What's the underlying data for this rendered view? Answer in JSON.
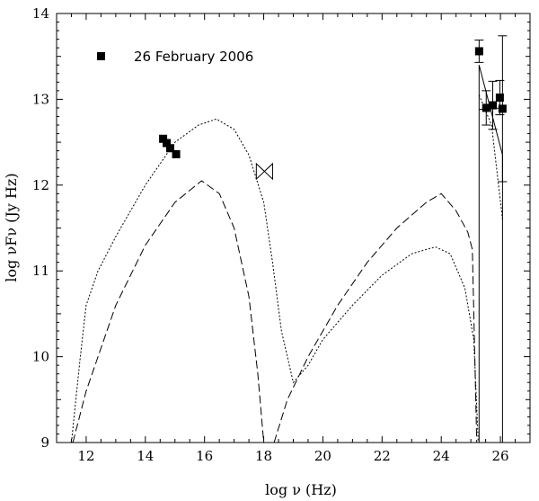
{
  "chart_data": {
    "type": "scatter",
    "title": "",
    "xlabel": "log ν (Hz)",
    "ylabel": "log νFν (Jy Hz)",
    "xlim": [
      11,
      27
    ],
    "ylim": [
      9,
      14
    ],
    "xticks": [
      12,
      14,
      16,
      18,
      20,
      22,
      24,
      26
    ],
    "yticks": [
      9,
      10,
      11,
      12,
      13,
      14
    ],
    "grid": false,
    "legend_position": "top-left",
    "series": [
      {
        "name": "26 February 2006",
        "kind": "points",
        "marker": "square",
        "points": [
          {
            "x": 14.6,
            "y": 12.54
          },
          {
            "x": 14.72,
            "y": 12.49
          },
          {
            "x": 14.84,
            "y": 12.43
          },
          {
            "x": 15.04,
            "y": 12.36
          },
          {
            "x": 25.28,
            "y": 13.56,
            "yerr": 0.13
          },
          {
            "x": 25.52,
            "y": 12.9,
            "yerr": 0.2
          },
          {
            "x": 25.74,
            "y": 12.93,
            "yerr": 0.28
          },
          {
            "x": 25.98,
            "y": 13.02,
            "yerr": 0.2
          },
          {
            "x": 26.07,
            "y": 12.89,
            "yerr": 0.85
          }
        ]
      },
      {
        "kind": "bowtie",
        "x_range": [
          17.75,
          18.3
        ],
        "y_center": 12.16,
        "half_width_ends": 0.09
      },
      {
        "kind": "line",
        "style": "dotted",
        "points": [
          [
            11.5,
            9.0
          ],
          [
            11.8,
            10.0
          ],
          [
            12.0,
            10.6
          ],
          [
            12.4,
            11.0
          ],
          [
            13.0,
            11.4
          ],
          [
            14.0,
            12.0
          ],
          [
            15.0,
            12.5
          ],
          [
            15.8,
            12.7
          ],
          [
            16.4,
            12.77
          ],
          [
            17.0,
            12.65
          ],
          [
            17.5,
            12.35
          ],
          [
            18.0,
            11.8
          ],
          [
            18.3,
            11.1
          ],
          [
            18.6,
            10.3
          ],
          [
            19.0,
            9.7
          ],
          [
            19.5,
            9.9
          ],
          [
            20.0,
            10.2
          ],
          [
            21.0,
            10.6
          ],
          [
            22.0,
            10.95
          ],
          [
            23.0,
            11.2
          ],
          [
            23.8,
            11.28
          ],
          [
            24.3,
            11.2
          ],
          [
            24.8,
            10.8
          ],
          [
            25.1,
            10.2
          ],
          [
            25.25,
            9.0
          ]
        ]
      },
      {
        "kind": "line",
        "style": "dashed",
        "points": [
          [
            11.55,
            9.0
          ],
          [
            12.0,
            9.6
          ],
          [
            13.0,
            10.6
          ],
          [
            14.0,
            11.3
          ],
          [
            15.0,
            11.8
          ],
          [
            15.9,
            12.05
          ],
          [
            16.5,
            11.9
          ],
          [
            17.0,
            11.5
          ],
          [
            17.5,
            10.7
          ],
          [
            17.8,
            9.8
          ],
          [
            18.0,
            9.0
          ]
        ]
      },
      {
        "kind": "line",
        "style": "dashed",
        "points": [
          [
            18.35,
            9.0
          ],
          [
            18.8,
            9.5
          ],
          [
            19.5,
            10.0
          ],
          [
            20.5,
            10.6
          ],
          [
            21.5,
            11.1
          ],
          [
            22.5,
            11.5
          ],
          [
            23.5,
            11.8
          ],
          [
            24.0,
            11.9
          ],
          [
            24.5,
            11.7
          ],
          [
            24.9,
            11.45
          ],
          [
            25.05,
            11.25
          ],
          [
            25.2,
            9.0
          ]
        ]
      },
      {
        "kind": "line",
        "style": "solid",
        "points": [
          [
            25.28,
            9.0
          ],
          [
            25.28,
            13.4
          ],
          [
            26.07,
            12.35
          ],
          [
            26.07,
            9.0
          ]
        ]
      },
      {
        "kind": "line",
        "style": "dotted",
        "points": [
          [
            25.28,
            13.05
          ],
          [
            25.7,
            12.7
          ],
          [
            26.07,
            11.6
          ]
        ]
      },
      {
        "kind": "line",
        "style": "solid",
        "points": [
          [
            25.28,
            12.88
          ],
          [
            26.07,
            12.9
          ]
        ]
      }
    ]
  }
}
